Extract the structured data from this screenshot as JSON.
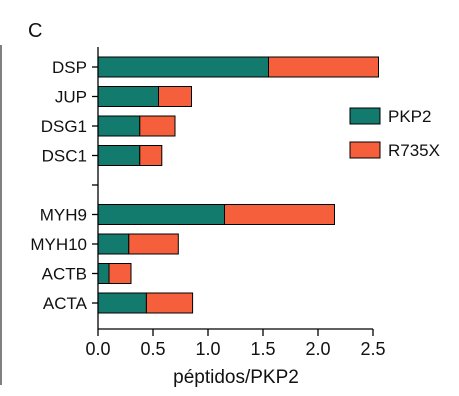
{
  "chart_data": {
    "type": "bar",
    "stacked": true,
    "orientation": "horizontal",
    "panel_label": "C",
    "categories": [
      "DSP",
      "JUP",
      "DSG1",
      "DSC1",
      "",
      "MYH9",
      "MYH10",
      "ACTB",
      "ACTA"
    ],
    "series": [
      {
        "name": "PKP2",
        "color": "#137a6e",
        "values": [
          1.55,
          0.55,
          0.38,
          0.38,
          0,
          1.15,
          0.28,
          0.1,
          0.44
        ]
      },
      {
        "name": "R735X",
        "color": "#f55f3c",
        "values": [
          1.0,
          0.3,
          0.32,
          0.2,
          0,
          1.0,
          0.45,
          0.2,
          0.42
        ]
      }
    ],
    "xlabel": "péptidos/PKP2",
    "ylabel": "",
    "xlim": [
      0,
      2.5
    ],
    "xticks": [
      "0.0",
      "0.5",
      "1.0",
      "1.5",
      "2.0",
      "2.5"
    ],
    "legend_position": "right",
    "grid": false
  }
}
